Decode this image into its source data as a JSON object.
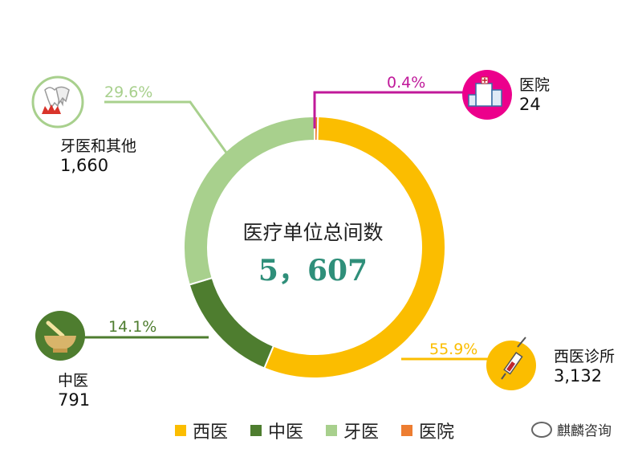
{
  "chart_data": {
    "type": "pie",
    "title": "医疗单位总间数",
    "total": "5，607",
    "series": [
      {
        "name": "西医",
        "label": "西医诊所",
        "value": 3132,
        "value_text": "3,132",
        "percent": "55.9%",
        "color": "#fbbd00",
        "icon": "syringe-icon"
      },
      {
        "name": "中医",
        "label": "中医",
        "value": 791,
        "value_text": "791",
        "percent": "14.1%",
        "color": "#4e7d2f",
        "icon": "mortar-pestle-icon"
      },
      {
        "name": "牙医",
        "label": "牙医和其他",
        "value": 1660,
        "value_text": "1,660",
        "percent": "29.6%",
        "color": "#a8d08d",
        "icon": "teeth-icon"
      },
      {
        "name": "医院",
        "label": "医院",
        "value": 24,
        "value_text": "24",
        "percent": "0.4%",
        "color": "#ed7d31",
        "icon": "hospital-building-icon"
      }
    ],
    "legend": [
      "西医",
      "中医",
      "牙医",
      "医院"
    ],
    "legend_position": "bottom"
  },
  "brand": {
    "text": "麒麟咨询",
    "icon": "wechat-icon"
  },
  "colors": {
    "center_value": "#2f8f7a",
    "hospital_leader": "#c0199a"
  }
}
